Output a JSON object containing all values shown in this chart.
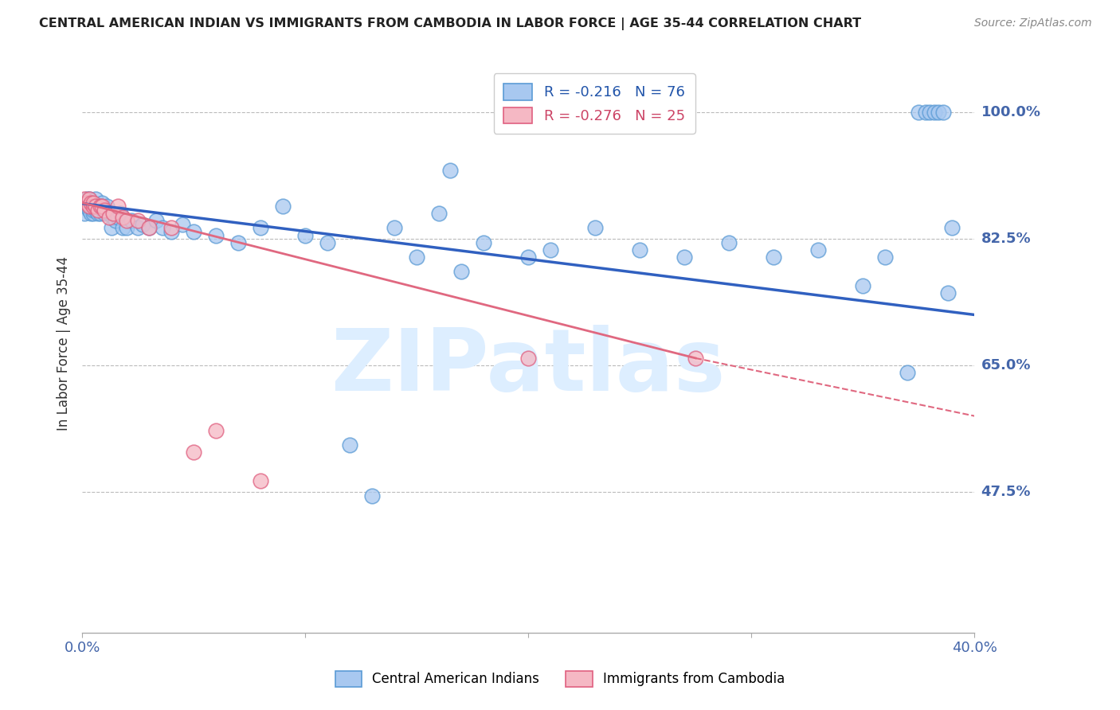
{
  "title": "CENTRAL AMERICAN INDIAN VS IMMIGRANTS FROM CAMBODIA IN LABOR FORCE | AGE 35-44 CORRELATION CHART",
  "source": "Source: ZipAtlas.com",
  "ylabel": "In Labor Force | Age 35-44",
  "xlim": [
    0.0,
    0.4
  ],
  "ylim": [
    0.28,
    1.08
  ],
  "ytick_positions": [
    0.475,
    0.65,
    0.825,
    1.0
  ],
  "ytick_labels": [
    "47.5%",
    "65.0%",
    "82.5%",
    "100.0%"
  ],
  "xtick_positions": [
    0.0,
    0.1,
    0.2,
    0.3,
    0.4
  ],
  "xtick_labels": [
    "0.0%",
    "",
    "",
    "",
    "40.0%"
  ],
  "blue_R": -0.216,
  "blue_N": 76,
  "pink_R": -0.276,
  "pink_N": 25,
  "blue_scatter_color": "#a8c8f0",
  "blue_edge_color": "#5b9bd5",
  "pink_scatter_color": "#f5b8c4",
  "pink_edge_color": "#e06080",
  "blue_line_color": "#3060c0",
  "pink_line_color": "#e06880",
  "grid_color": "#bbbbbb",
  "watermark_color": "#ddeeff",
  "axis_color": "#4466aa",
  "title_color": "#222222",
  "source_color": "#888888",
  "blue_x": [
    0.001,
    0.001,
    0.002,
    0.002,
    0.002,
    0.003,
    0.003,
    0.003,
    0.003,
    0.004,
    0.004,
    0.004,
    0.005,
    0.005,
    0.005,
    0.006,
    0.006,
    0.006,
    0.007,
    0.007,
    0.008,
    0.008,
    0.009,
    0.01,
    0.01,
    0.011,
    0.012,
    0.013,
    0.014,
    0.015,
    0.016,
    0.017,
    0.018,
    0.02,
    0.022,
    0.025,
    0.027,
    0.03,
    0.033,
    0.036,
    0.04,
    0.045,
    0.05,
    0.06,
    0.07,
    0.08,
    0.09,
    0.1,
    0.11,
    0.12,
    0.13,
    0.14,
    0.15,
    0.16,
    0.165,
    0.17,
    0.18,
    0.2,
    0.21,
    0.23,
    0.25,
    0.27,
    0.29,
    0.31,
    0.33,
    0.35,
    0.36,
    0.37,
    0.375,
    0.378,
    0.38,
    0.382,
    0.384,
    0.386,
    0.388,
    0.39
  ],
  "blue_y": [
    0.87,
    0.86,
    0.875,
    0.87,
    0.88,
    0.865,
    0.87,
    0.875,
    0.88,
    0.86,
    0.87,
    0.875,
    0.86,
    0.865,
    0.875,
    0.865,
    0.87,
    0.88,
    0.86,
    0.87,
    0.86,
    0.87,
    0.875,
    0.86,
    0.868,
    0.87,
    0.86,
    0.84,
    0.855,
    0.85,
    0.855,
    0.86,
    0.84,
    0.84,
    0.85,
    0.84,
    0.845,
    0.84,
    0.85,
    0.84,
    0.835,
    0.845,
    0.835,
    0.83,
    0.82,
    0.84,
    0.87,
    0.83,
    0.82,
    0.54,
    0.47,
    0.84,
    0.8,
    0.86,
    0.92,
    0.78,
    0.82,
    0.8,
    0.81,
    0.84,
    0.81,
    0.8,
    0.82,
    0.8,
    0.81,
    0.76,
    0.8,
    0.64,
    1.0,
    1.0,
    1.0,
    1.0,
    1.0,
    1.0,
    0.75,
    0.84
  ],
  "pink_x": [
    0.001,
    0.002,
    0.003,
    0.003,
    0.004,
    0.005,
    0.005,
    0.006,
    0.007,
    0.008,
    0.009,
    0.01,
    0.012,
    0.014,
    0.016,
    0.018,
    0.02,
    0.025,
    0.03,
    0.04,
    0.05,
    0.06,
    0.08,
    0.2,
    0.275
  ],
  "pink_y": [
    0.88,
    0.875,
    0.88,
    0.87,
    0.875,
    0.87,
    0.875,
    0.87,
    0.865,
    0.87,
    0.87,
    0.865,
    0.855,
    0.86,
    0.87,
    0.855,
    0.85,
    0.85,
    0.84,
    0.84,
    0.53,
    0.56,
    0.49,
    0.66,
    0.66
  ],
  "blue_trendline": [
    0.0,
    0.4,
    0.874,
    0.72
  ],
  "pink_trendline_solid": [
    0.0,
    0.275,
    0.875,
    0.66
  ],
  "pink_trendline_dash": [
    0.275,
    0.4,
    0.66,
    0.58
  ]
}
